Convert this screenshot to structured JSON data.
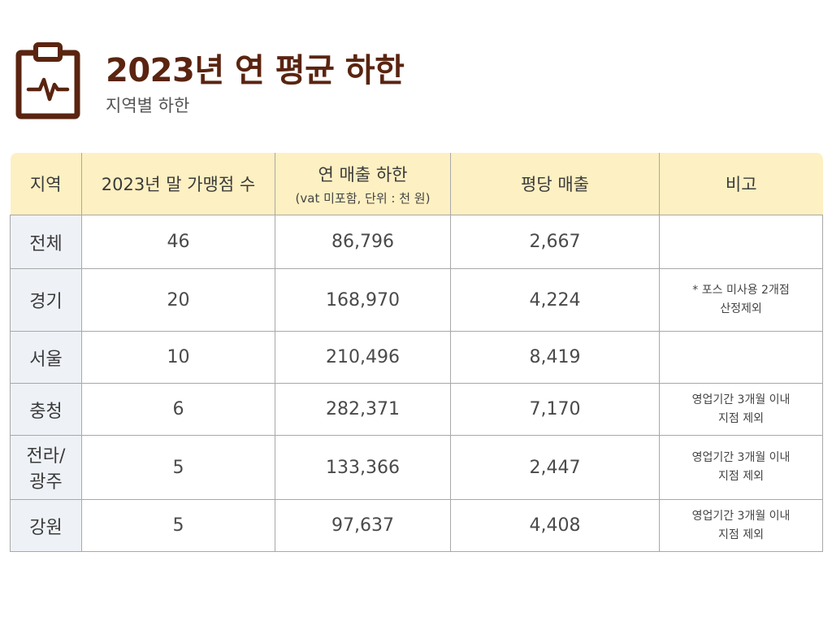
{
  "header": {
    "title": "2023년 연 평균 하한",
    "subtitle": "지역별 하한",
    "icon": "clipboard-pulse-icon",
    "accent_color": "#5a2410"
  },
  "table": {
    "columns": {
      "region": "지역",
      "stores": "2023년 말 가맹점 수",
      "sales": "연 매출 하한",
      "sales_note": "(vat 미포함, 단위 : 천 원)",
      "per_pyeong": "평당 매출",
      "remarks": "비고"
    },
    "rows": [
      {
        "region": "전체",
        "region_line2": "",
        "stores": "46",
        "sales": "86,796",
        "per_pyeong": "2,667",
        "note1": "",
        "note2": ""
      },
      {
        "region": "경기",
        "region_line2": "",
        "stores": "20",
        "sales": "168,970",
        "per_pyeong": "4,224",
        "note1": "* 포스 미사용 2개점",
        "note2": "산정제외"
      },
      {
        "region": "서울",
        "region_line2": "",
        "stores": "10",
        "sales": "210,496",
        "per_pyeong": "8,419",
        "note1": "",
        "note2": ""
      },
      {
        "region": "충청",
        "region_line2": "",
        "stores": "6",
        "sales": "282,371",
        "per_pyeong": "7,170",
        "note1": "영업기간 3개월 이내",
        "note2": "지점 제외"
      },
      {
        "region": "전라/",
        "region_line2": "광주",
        "stores": "5",
        "sales": "133,366",
        "per_pyeong": "2,447",
        "note1": "영업기간 3개월 이내",
        "note2": "지점 제외"
      },
      {
        "region": "강원",
        "region_line2": "",
        "stores": "5",
        "sales": "97,637",
        "per_pyeong": "4,408",
        "note1": "영업기간 3개월 이내",
        "note2": "지점 제외"
      }
    ],
    "header_bg": "#fdf0c2",
    "region_bg": "#eef2f7"
  }
}
